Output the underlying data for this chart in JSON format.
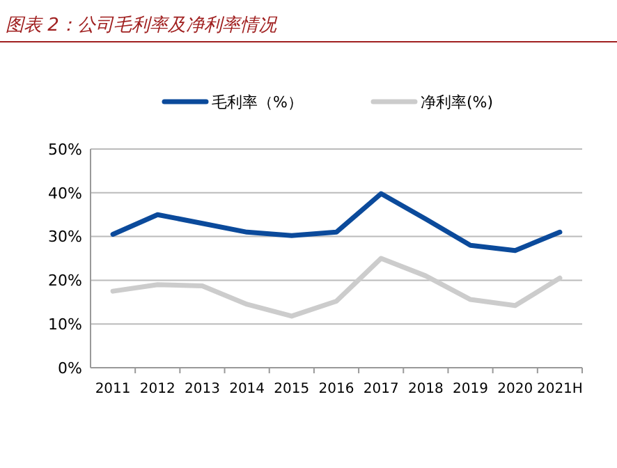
{
  "chart_data": {
    "type": "line",
    "title": "图表 2：公司毛利率及净利率情况",
    "categories": [
      "2011",
      "2012",
      "2013",
      "2014",
      "2015",
      "2016",
      "2017",
      "2018",
      "2019",
      "2020",
      "2021H"
    ],
    "series": [
      {
        "name": "毛利率（%）",
        "color": "#0b4a9b",
        "values": [
          30.5,
          35,
          33,
          31,
          30.2,
          31,
          39.8,
          34,
          28,
          26.8,
          31
        ]
      },
      {
        "name": "净利率(%)",
        "color": "#cccccc",
        "values": [
          17.5,
          19,
          18.7,
          14.5,
          11.8,
          15.2,
          25,
          21,
          15.6,
          14.2,
          20.5
        ]
      }
    ],
    "ylim": [
      0,
      50
    ],
    "yticks": [
      {
        "value": 0,
        "label": "0%"
      },
      {
        "value": 10,
        "label": "10%"
      },
      {
        "value": 20,
        "label": "20%"
      },
      {
        "value": 30,
        "label": "30%"
      },
      {
        "value": 40,
        "label": "40%"
      },
      {
        "value": 50,
        "label": "50%"
      }
    ],
    "grid": "y",
    "legend": "top",
    "marker": "none",
    "line_style": "solid"
  }
}
